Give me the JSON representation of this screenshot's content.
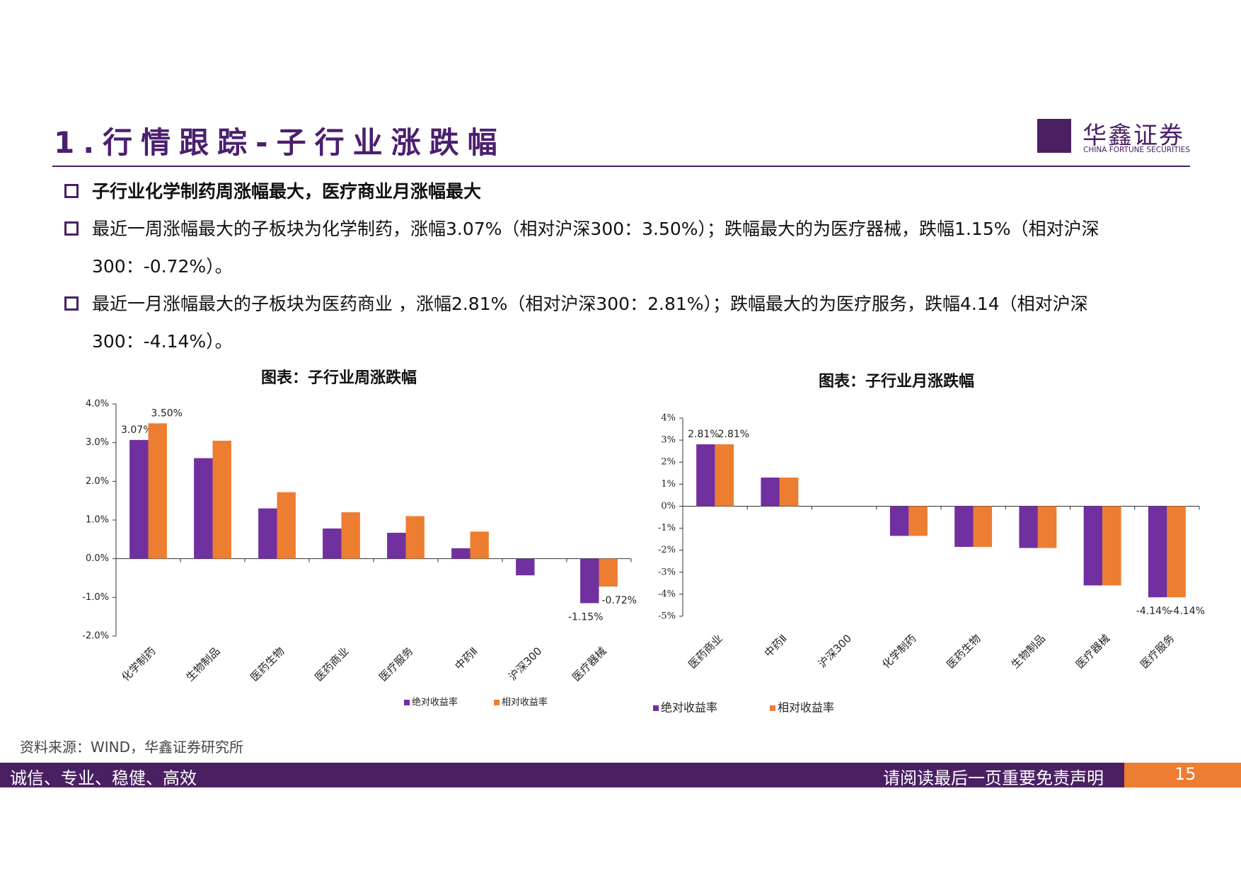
{
  "header": {
    "title": "1.行情跟踪-子行业涨跌幅",
    "logo_name": "华鑫证券",
    "logo_sub": "CHINA FORTUNE SECURITIES"
  },
  "bullets": [
    "子行业化学制药周涨幅最大，医疗商业月涨幅最大",
    "最近一周涨幅最大的子板块为化学制药，涨幅3.07%（相对沪深300：3.50%）；跌幅最大的为医疗器械，跌幅1.15%（相对沪深300：-0.72%）。",
    "最近一月涨幅最大的子板块为医药商业 ，涨幅2.81%（相对沪深300：2.81%）；跌幅最大的为医疗服务，跌幅4.14（相对沪深300：-4.14%）。"
  ],
  "chart_data": [
    {
      "type": "bar",
      "title": "图表：子行业周涨跌幅",
      "categories": [
        "化学制药",
        "生物制品",
        "医药生物",
        "医药商业",
        "医疗服务",
        "中药Ⅱ",
        "沪深300",
        "医疗器械"
      ],
      "series": [
        {
          "name": "绝对收益率",
          "color": "#7030a0",
          "values": [
            3.07,
            2.6,
            1.3,
            0.78,
            0.67,
            0.27,
            -0.43,
            -1.15
          ],
          "value_labels": [
            "3.07%",
            null,
            null,
            null,
            null,
            null,
            null,
            "-1.15%"
          ]
        },
        {
          "name": "相对收益率",
          "color": "#ed7d31",
          "values": [
            3.5,
            3.05,
            1.72,
            1.2,
            1.1,
            0.7,
            0,
            -0.72
          ],
          "value_labels": [
            "3.50%",
            null,
            null,
            null,
            null,
            null,
            null,
            "-0.72%"
          ]
        }
      ],
      "ylim": [
        -2,
        4
      ],
      "yticks": [
        {
          "value": -2,
          "label": "-2.0%"
        },
        {
          "value": -1,
          "label": "-1.0%"
        },
        {
          "value": 0,
          "label": "0.0%"
        },
        {
          "value": 1,
          "label": "1.0%"
        },
        {
          "value": 2,
          "label": "2.0%"
        },
        {
          "value": 3,
          "label": "3.0%"
        },
        {
          "value": 4,
          "label": "4.0%"
        }
      ]
    },
    {
      "type": "bar",
      "title": "图表：子行业月涨跌幅",
      "categories": [
        "医药商业",
        "中药Ⅱ",
        "沪深300",
        "化学制药",
        "医药生物",
        "生物制品",
        "医疗器械",
        "医疗服务"
      ],
      "series": [
        {
          "name": "绝对收益率",
          "color": "#7030a0",
          "values": [
            2.81,
            1.3,
            0,
            -1.35,
            -1.85,
            -1.9,
            -3.6,
            -4.14
          ],
          "value_labels": [
            "2.81%",
            null,
            null,
            null,
            null,
            null,
            null,
            "-4.14%"
          ]
        },
        {
          "name": "相对收益率",
          "color": "#ed7d31",
          "values": [
            2.81,
            1.3,
            0,
            -1.35,
            -1.85,
            -1.9,
            -3.6,
            -4.14
          ],
          "value_labels": [
            "2.81%",
            null,
            null,
            null,
            null,
            null,
            null,
            "-4.14%"
          ]
        }
      ],
      "ylim": [
        -5,
        4
      ],
      "yticks": [
        {
          "value": -5,
          "label": "-5%"
        },
        {
          "value": -4,
          "label": "-4%"
        },
        {
          "value": -3,
          "label": "-3%"
        },
        {
          "value": -2,
          "label": "-2%"
        },
        {
          "value": -1,
          "label": "-1%"
        },
        {
          "value": 0,
          "label": "0%"
        },
        {
          "value": 1,
          "label": "1%"
        },
        {
          "value": 2,
          "label": "2%"
        },
        {
          "value": 3,
          "label": "3%"
        },
        {
          "value": 4,
          "label": "4%"
        }
      ]
    }
  ],
  "source": "资料来源：WIND，华鑫证券研究所",
  "footer": {
    "slogan": "诚信、专业、稳健、高效",
    "disclaimer": "请阅读最后一页重要免责声明",
    "page": "15"
  }
}
